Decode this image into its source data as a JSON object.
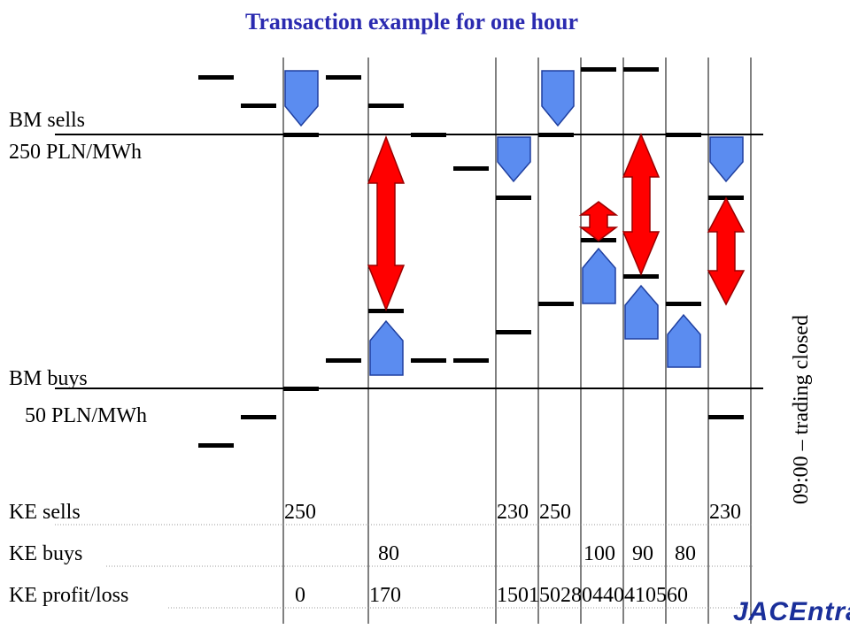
{
  "title": "Transaction example for one hour",
  "labels": {
    "bm_sells": "BM sells",
    "bm_sells_price": "250 PLN/MWh",
    "bm_buys": "BM buys",
    "bm_buys_price": "50 PLN/MWh",
    "ke_sells": "KE sells",
    "ke_buys": "KE buys",
    "ke_profit_loss": "KE profit/loss",
    "trading_closed": "09:00 – trading closed"
  },
  "ke_sells_values": [
    "250",
    "230",
    "250",
    "230"
  ],
  "ke_buys_values": [
    "80",
    "100",
    "90",
    "80"
  ],
  "ke_profit_values": [
    "0",
    "170",
    "150",
    "150",
    "280",
    "440",
    "410",
    "560"
  ],
  "logo_text": "JACEntra",
  "colors": {
    "title": "#2b2bb0",
    "pentagon_fill": "#5b8cf0",
    "arrow_fill": "#ff0000",
    "logo": "#1a2f9a"
  }
}
